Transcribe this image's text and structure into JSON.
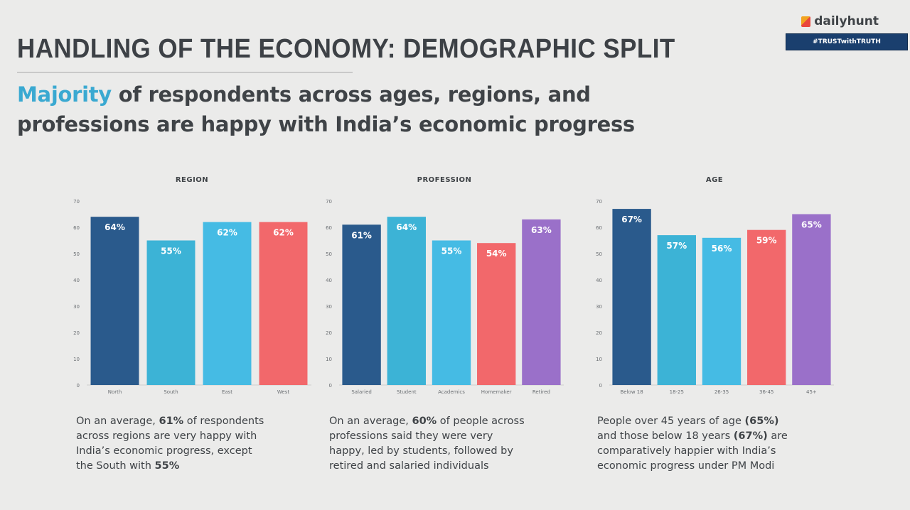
{
  "header": {
    "title": "HANDLING OF THE ECONOMY: DEMOGRAPHIC SPLIT",
    "subtitle_highlight": "Majority",
    "subtitle_rest_line1": " of respondents across ages, regions, and",
    "subtitle_line2": "professions are happy with India’s economic progress"
  },
  "branding": {
    "logo_text": "dailyhunt",
    "logo_icon": "dailyhunt-logo-icon",
    "banner_text": "#TRUSTwithTRUTH"
  },
  "colors": {
    "background": "#ebebea",
    "accent": "#3aa9d1",
    "dark_blue": "#2a5a8c",
    "light_blue_1": "#3cb3d6",
    "light_blue_2": "#45bbe4",
    "red": "#f2686b",
    "purple": "#9a70c9"
  },
  "chart_data": [
    {
      "type": "bar",
      "title": "REGION",
      "categories": [
        "North",
        "South",
        "East",
        "West"
      ],
      "values": [
        64,
        55,
        62,
        62
      ],
      "labels": [
        "64%",
        "55%",
        "62%",
        "62%"
      ],
      "bar_colors": [
        "#2a5a8c",
        "#3cb3d6",
        "#45bbe4",
        "#f2686b"
      ],
      "ylim": [
        0,
        70
      ],
      "yticks": [
        "0",
        "10",
        "20",
        "30",
        "40",
        "50",
        "60",
        "70"
      ],
      "grid": false
    },
    {
      "type": "bar",
      "title": "PROFESSION",
      "categories": [
        "Salaried",
        "Student",
        "Academics",
        "Homemaker",
        "Retired"
      ],
      "values": [
        61,
        64,
        55,
        54,
        63
      ],
      "labels": [
        "61%",
        "64%",
        "55%",
        "54%",
        "63%"
      ],
      "bar_colors": [
        "#2a5a8c",
        "#3cb3d6",
        "#45bbe4",
        "#f2686b",
        "#9a70c9"
      ],
      "ylim": [
        0,
        70
      ],
      "yticks": [
        "0",
        "10",
        "20",
        "30",
        "40",
        "50",
        "60",
        "70"
      ],
      "grid": false
    },
    {
      "type": "bar",
      "title": "AGE",
      "categories": [
        "Below 18",
        "18-25",
        "26-35",
        "36-45",
        "45+"
      ],
      "values": [
        67,
        57,
        56,
        59,
        65
      ],
      "labels": [
        "67%",
        "57%",
        "56%",
        "59%",
        "65%"
      ],
      "bar_colors": [
        "#2a5a8c",
        "#3cb3d6",
        "#45bbe4",
        "#f2686b",
        "#9a70c9"
      ],
      "ylim": [
        0,
        70
      ],
      "yticks": [
        "0",
        "10",
        "20",
        "30",
        "40",
        "50",
        "60",
        "70"
      ],
      "grid": false
    }
  ],
  "notes": [
    {
      "lines": [
        [
          {
            "t": "On an average, "
          },
          {
            "t": "61%",
            "b": true
          },
          {
            "t": " of respondents"
          }
        ],
        [
          {
            "t": "across regions are very happy with"
          }
        ],
        [
          {
            "t": "India’s economic progress, except"
          }
        ],
        [
          {
            "t": "the South with "
          },
          {
            "t": "55%",
            "b": true
          }
        ]
      ]
    },
    {
      "lines": [
        [
          {
            "t": "On an average, "
          },
          {
            "t": "60%",
            "b": true
          },
          {
            "t": " of people across"
          }
        ],
        [
          {
            "t": "professions said they were very"
          }
        ],
        [
          {
            "t": "happy, led by students, followed by"
          }
        ],
        [
          {
            "t": "retired and salaried individuals"
          }
        ]
      ]
    },
    {
      "lines": [
        [
          {
            "t": "People over 45 years of age "
          },
          {
            "t": "(65%)",
            "b": true
          }
        ],
        [
          {
            "t": "and those below 18 years "
          },
          {
            "t": "(67%)",
            "b": true
          },
          {
            "t": " are"
          }
        ],
        [
          {
            "t": "comparatively happier with India’s"
          }
        ],
        [
          {
            "t": "economic progress under PM Modi"
          }
        ]
      ]
    }
  ]
}
